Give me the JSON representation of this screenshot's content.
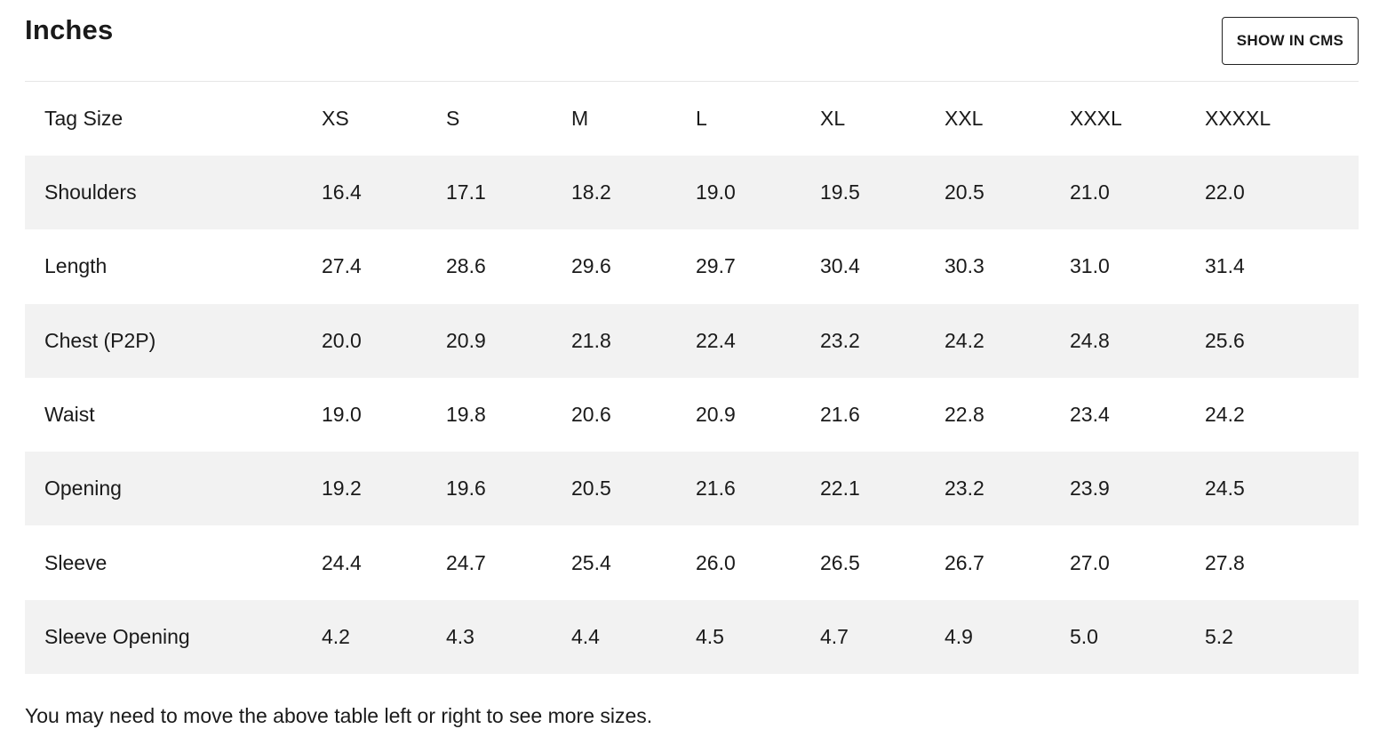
{
  "heading": "Inches",
  "cms_button_label": "SHOW IN CMS",
  "table": {
    "header": [
      "Tag Size",
      "XS",
      "S",
      "M",
      "L",
      "XL",
      "XXL",
      "XXXL",
      "XXXXL"
    ],
    "rows": [
      [
        "Shoulders",
        "16.4",
        "17.1",
        "18.2",
        "19.0",
        "19.5",
        "20.5",
        "21.0",
        "22.0"
      ],
      [
        "Length",
        "27.4",
        "28.6",
        "29.6",
        "29.7",
        "30.4",
        "30.3",
        "31.0",
        "31.4"
      ],
      [
        "Chest (P2P)",
        "20.0",
        "20.9",
        "21.8",
        "22.4",
        "23.2",
        "24.2",
        "24.8",
        "25.6"
      ],
      [
        "Waist",
        "19.0",
        "19.8",
        "20.6",
        "20.9",
        "21.6",
        "22.8",
        "23.4",
        "24.2"
      ],
      [
        "Opening",
        "19.2",
        "19.6",
        "20.5",
        "21.6",
        "22.1",
        "23.2",
        "23.9",
        "24.5"
      ],
      [
        "Sleeve",
        "24.4",
        "24.7",
        "25.4",
        "26.0",
        "26.5",
        "26.7",
        "27.0",
        "27.8"
      ],
      [
        "Sleeve Opening",
        "4.2",
        "4.3",
        "4.4",
        "4.5",
        "4.7",
        "4.9",
        "5.0",
        "5.2"
      ]
    ]
  },
  "footnote": "You may need to move the above table left or right to see more sizes."
}
